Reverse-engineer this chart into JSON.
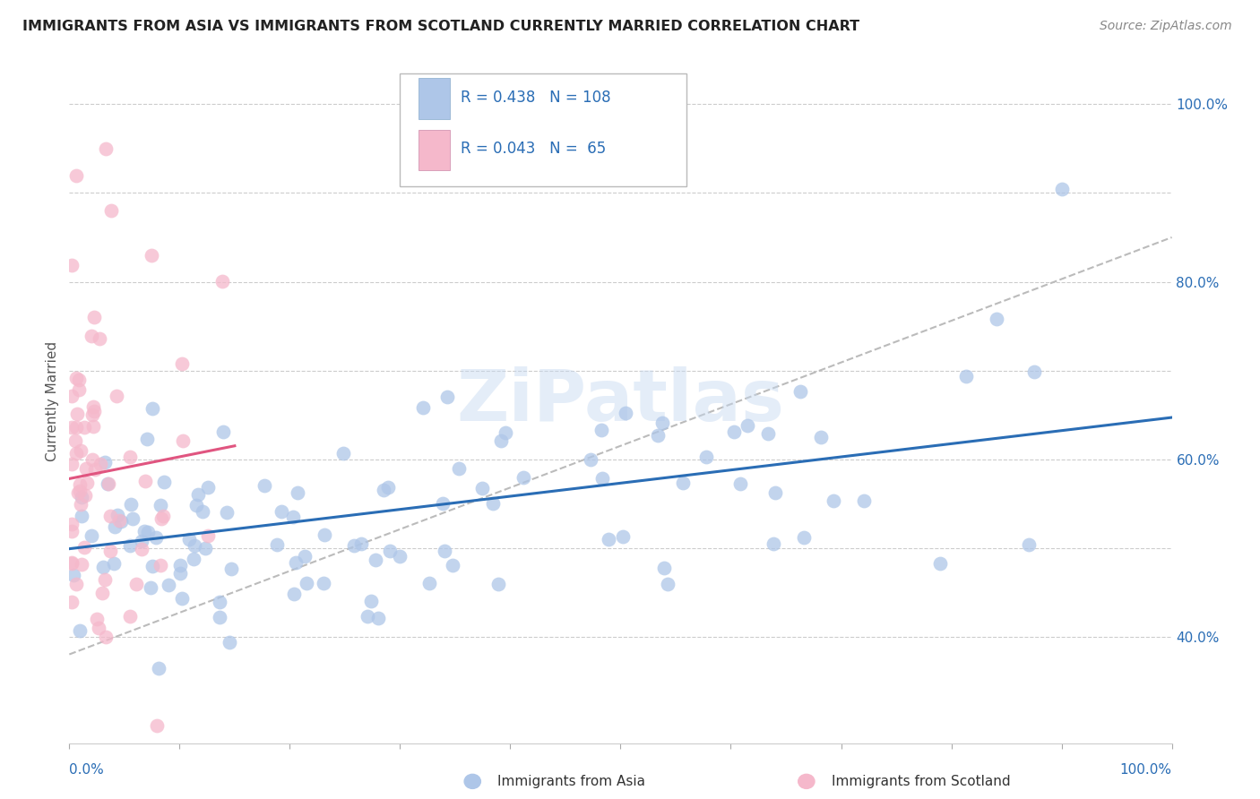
{
  "title": "IMMIGRANTS FROM ASIA VS IMMIGRANTS FROM SCOTLAND CURRENTLY MARRIED CORRELATION CHART",
  "source": "Source: ZipAtlas.com",
  "ylabel": "Currently Married",
  "legend1_label": "Immigrants from Asia",
  "legend2_label": "Immigrants from Scotland",
  "R_asia": 0.438,
  "N_asia": 108,
  "R_scotland": 0.043,
  "N_scotland": 65,
  "color_asia": "#aec6e8",
  "color_asia_line": "#2a6db5",
  "color_scotland": "#f5b8cb",
  "color_scotland_line": "#e05580",
  "color_trend": "#bbbbbb",
  "watermark": "ZiPatlas",
  "xlim": [
    0.0,
    1.0
  ],
  "ylim": [
    0.28,
    1.05
  ],
  "ytick_vals": [
    0.4,
    0.6,
    0.8,
    1.0
  ],
  "ytick_labels": [
    "40.0%",
    "60.0%",
    "80.0%",
    "100.0%"
  ],
  "grid_y_vals": [
    0.4,
    0.5,
    0.6,
    0.7,
    0.8,
    0.9,
    1.0
  ],
  "asia_line_x0": 0.0,
  "asia_line_x1": 1.0,
  "asia_line_y0": 0.499,
  "asia_line_y1": 0.647,
  "scotland_line_x0": 0.0,
  "scotland_line_x1": 0.15,
  "scotland_line_y0": 0.578,
  "scotland_line_y1": 0.615,
  "trend_line_x0": 0.0,
  "trend_line_x1": 1.0,
  "trend_line_y0": 0.38,
  "trend_line_y1": 0.85
}
